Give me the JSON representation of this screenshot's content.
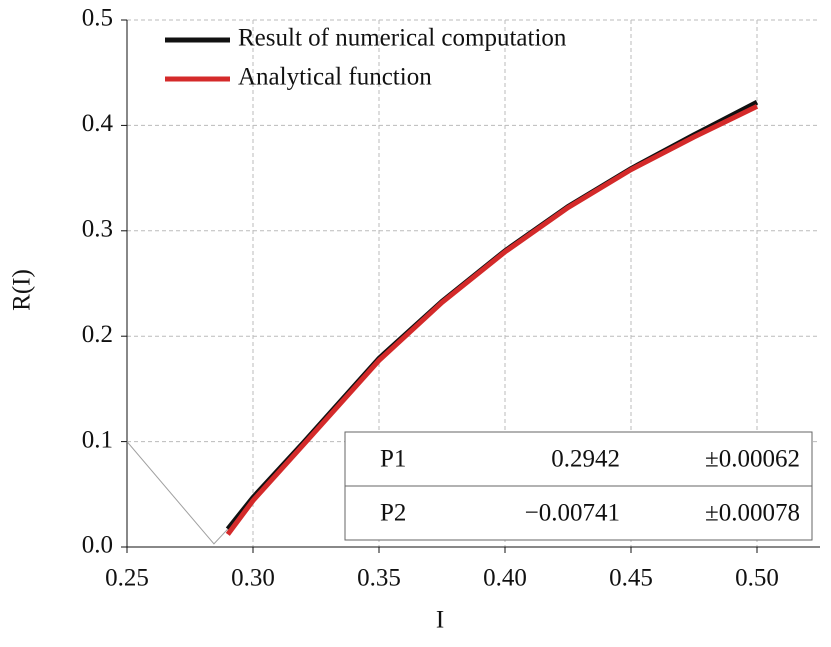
{
  "chart_data": {
    "type": "line",
    "x_label": "I",
    "y_label": "R(I)",
    "xlim": [
      0.25,
      0.525
    ],
    "ylim": [
      0,
      0.5
    ],
    "xticks": [
      0.25,
      {
        "value": 0.3,
        "label": "0.30"
      },
      0.35,
      {
        "value": 0.4,
        "label": "0.40"
      },
      0.45,
      {
        "value": 0.5,
        "label": "0.50"
      }
    ],
    "yticks": [
      {
        "value": 0,
        "label": "0.0"
      },
      0.1,
      0.2,
      0.3,
      0.4,
      0.5
    ],
    "grid": true,
    "legend": "top-left",
    "series": [
      {
        "color": "#a0a0a0",
        "width": 1,
        "x": [
          0.25,
          0.282,
          0.2845,
          0.29
        ],
        "values": [
          0.1,
          0.01,
          0.003,
          0.017
        ]
      },
      {
        "name": "Result of numerical computation",
        "color": "#111111",
        "width": 5,
        "x": [
          0.29,
          0.3,
          0.32,
          0.35,
          0.375,
          0.4,
          0.425,
          0.45,
          0.475,
          0.5
        ],
        "values": [
          0.017,
          0.047,
          0.099,
          0.179,
          0.233,
          0.281,
          0.323,
          0.359,
          0.391,
          0.422
        ]
      },
      {
        "name": "Analytical function",
        "color": "#d42a2a",
        "width": 5,
        "x": [
          0.29,
          0.3,
          0.32,
          0.35,
          0.375,
          0.4,
          0.425,
          0.45,
          0.475,
          0.5
        ],
        "values": [
          0.012,
          0.044,
          0.097,
          0.177,
          0.232,
          0.28,
          0.322,
          0.358,
          0.389,
          0.418
        ]
      }
    ],
    "table": {
      "rows": [
        [
          "P1",
          "0.2942",
          "±0.00062"
        ],
        [
          "P2",
          "−0.00741",
          "±0.00078"
        ]
      ]
    }
  }
}
